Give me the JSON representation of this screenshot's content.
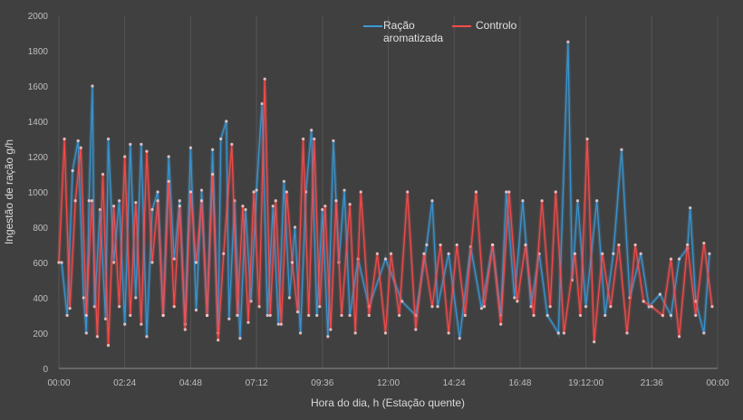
{
  "chart_data": {
    "type": "line",
    "title": "",
    "xlabel": "Hora do dia, h (Estação quente)",
    "ylabel": "Ingestão de ração  g/h",
    "xlim": [
      0,
      24
    ],
    "ylim": [
      0,
      2000
    ],
    "x_tick_labels": [
      "00:00",
      "02:24",
      "04:48",
      "07:12",
      "09:36",
      "12:00",
      "14:24",
      "16:48",
      "19:12:00",
      "21:36",
      "00:00"
    ],
    "y_ticks": [
      0,
      200,
      400,
      600,
      800,
      1000,
      1200,
      1400,
      1600,
      1800,
      2000
    ],
    "grid": "vertical",
    "legend": "top-center",
    "series": [
      {
        "name": "Ração aromatizada",
        "color": "#3a9ad9",
        "points": [
          [
            0.1,
            600
          ],
          [
            0.3,
            300
          ],
          [
            0.5,
            1120
          ],
          [
            0.7,
            1290
          ],
          [
            0.9,
            400
          ],
          [
            1.0,
            200
          ],
          [
            1.1,
            950
          ],
          [
            1.22,
            1600
          ],
          [
            1.3,
            350
          ],
          [
            1.5,
            900
          ],
          [
            1.7,
            280
          ],
          [
            1.8,
            1300
          ],
          [
            2.0,
            600
          ],
          [
            2.2,
            950
          ],
          [
            2.4,
            250
          ],
          [
            2.6,
            1270
          ],
          [
            2.8,
            400
          ],
          [
            3.0,
            1270
          ],
          [
            3.2,
            180
          ],
          [
            3.4,
            900
          ],
          [
            3.6,
            1000
          ],
          [
            3.8,
            300
          ],
          [
            4.0,
            1200
          ],
          [
            4.2,
            620
          ],
          [
            4.4,
            950
          ],
          [
            4.6,
            250
          ],
          [
            4.8,
            1250
          ],
          [
            5.0,
            330
          ],
          [
            5.2,
            1010
          ],
          [
            5.4,
            300
          ],
          [
            5.6,
            1240
          ],
          [
            5.8,
            200
          ],
          [
            5.9,
            1300
          ],
          [
            6.1,
            1400
          ],
          [
            6.2,
            280
          ],
          [
            6.4,
            950
          ],
          [
            6.6,
            170
          ],
          [
            6.8,
            900
          ],
          [
            7.0,
            380
          ],
          [
            7.2,
            1010
          ],
          [
            7.4,
            1500
          ],
          [
            7.6,
            300
          ],
          [
            7.8,
            920
          ],
          [
            8.0,
            250
          ],
          [
            8.2,
            1060
          ],
          [
            8.4,
            400
          ],
          [
            8.6,
            800
          ],
          [
            8.8,
            200
          ],
          [
            9.0,
            1000
          ],
          [
            9.2,
            1350
          ],
          [
            9.4,
            300
          ],
          [
            9.6,
            900
          ],
          [
            9.8,
            180
          ],
          [
            10.0,
            1290
          ],
          [
            10.2,
            600
          ],
          [
            10.4,
            1010
          ],
          [
            10.6,
            300
          ],
          [
            10.9,
            620
          ],
          [
            11.3,
            350
          ],
          [
            11.9,
            620
          ],
          [
            12.5,
            380
          ],
          [
            13.0,
            300
          ],
          [
            13.4,
            700
          ],
          [
            13.6,
            950
          ],
          [
            13.8,
            350
          ],
          [
            14.2,
            650
          ],
          [
            14.6,
            170
          ],
          [
            15.0,
            690
          ],
          [
            15.4,
            340
          ],
          [
            15.8,
            700
          ],
          [
            16.1,
            300
          ],
          [
            16.3,
            1000
          ],
          [
            16.6,
            400
          ],
          [
            16.9,
            950
          ],
          [
            17.2,
            350
          ],
          [
            17.5,
            650
          ],
          [
            17.8,
            300
          ],
          [
            18.2,
            200
          ],
          [
            18.55,
            1850
          ],
          [
            18.7,
            500
          ],
          [
            18.9,
            950
          ],
          [
            19.2,
            350
          ],
          [
            19.6,
            950
          ],
          [
            19.9,
            300
          ],
          [
            20.2,
            650
          ],
          [
            20.5,
            1240
          ],
          [
            20.8,
            400
          ],
          [
            21.2,
            650
          ],
          [
            21.5,
            350
          ],
          [
            21.9,
            420
          ],
          [
            22.3,
            300
          ],
          [
            22.6,
            620
          ],
          [
            22.9,
            680
          ],
          [
            23.0,
            910
          ],
          [
            23.2,
            380
          ],
          [
            23.5,
            200
          ],
          [
            23.7,
            650
          ]
        ]
      },
      {
        "name": "Controlo",
        "color": "#ff4b4b",
        "points": [
          [
            0.0,
            600
          ],
          [
            0.2,
            1300
          ],
          [
            0.4,
            340
          ],
          [
            0.6,
            950
          ],
          [
            0.8,
            1250
          ],
          [
            1.0,
            300
          ],
          [
            1.2,
            950
          ],
          [
            1.4,
            180
          ],
          [
            1.6,
            1100
          ],
          [
            1.8,
            130
          ],
          [
            2.0,
            920
          ],
          [
            2.2,
            350
          ],
          [
            2.4,
            1200
          ],
          [
            2.6,
            300
          ],
          [
            2.8,
            940
          ],
          [
            3.0,
            250
          ],
          [
            3.2,
            1230
          ],
          [
            3.4,
            600
          ],
          [
            3.6,
            950
          ],
          [
            3.8,
            300
          ],
          [
            4.0,
            1060
          ],
          [
            4.2,
            350
          ],
          [
            4.4,
            920
          ],
          [
            4.6,
            220
          ],
          [
            4.8,
            1000
          ],
          [
            5.0,
            600
          ],
          [
            5.2,
            950
          ],
          [
            5.4,
            300
          ],
          [
            5.6,
            1100
          ],
          [
            5.8,
            160
          ],
          [
            6.0,
            650
          ],
          [
            6.3,
            1270
          ],
          [
            6.5,
            300
          ],
          [
            6.7,
            920
          ],
          [
            6.9,
            260
          ],
          [
            7.1,
            1000
          ],
          [
            7.3,
            350
          ],
          [
            7.5,
            1640
          ],
          [
            7.7,
            300
          ],
          [
            7.9,
            950
          ],
          [
            8.1,
            250
          ],
          [
            8.3,
            1000
          ],
          [
            8.5,
            600
          ],
          [
            8.7,
            320
          ],
          [
            8.9,
            1300
          ],
          [
            9.1,
            300
          ],
          [
            9.3,
            1300
          ],
          [
            9.5,
            350
          ],
          [
            9.7,
            920
          ],
          [
            9.9,
            220
          ],
          [
            10.1,
            950
          ],
          [
            10.3,
            300
          ],
          [
            10.6,
            930
          ],
          [
            10.8,
            200
          ],
          [
            11.0,
            1000
          ],
          [
            11.3,
            300
          ],
          [
            11.6,
            650
          ],
          [
            11.9,
            200
          ],
          [
            12.1,
            650
          ],
          [
            12.4,
            300
          ],
          [
            12.7,
            1000
          ],
          [
            13.0,
            220
          ],
          [
            13.3,
            650
          ],
          [
            13.6,
            350
          ],
          [
            13.9,
            700
          ],
          [
            14.2,
            200
          ],
          [
            14.5,
            700
          ],
          [
            14.8,
            300
          ],
          [
            15.2,
            1000
          ],
          [
            15.5,
            350
          ],
          [
            15.8,
            700
          ],
          [
            16.1,
            250
          ],
          [
            16.4,
            1000
          ],
          [
            16.7,
            380
          ],
          [
            17.0,
            700
          ],
          [
            17.3,
            300
          ],
          [
            17.6,
            950
          ],
          [
            17.9,
            350
          ],
          [
            18.1,
            1000
          ],
          [
            18.4,
            200
          ],
          [
            18.8,
            650
          ],
          [
            19.0,
            300
          ],
          [
            19.25,
            1300
          ],
          [
            19.5,
            150
          ],
          [
            19.8,
            650
          ],
          [
            20.1,
            350
          ],
          [
            20.4,
            700
          ],
          [
            20.7,
            200
          ],
          [
            21.0,
            700
          ],
          [
            21.3,
            380
          ],
          [
            21.6,
            350
          ],
          [
            22.0,
            300
          ],
          [
            22.3,
            620
          ],
          [
            22.6,
            180
          ],
          [
            22.9,
            700
          ],
          [
            23.2,
            300
          ],
          [
            23.5,
            710
          ],
          [
            23.8,
            350
          ]
        ]
      }
    ]
  }
}
